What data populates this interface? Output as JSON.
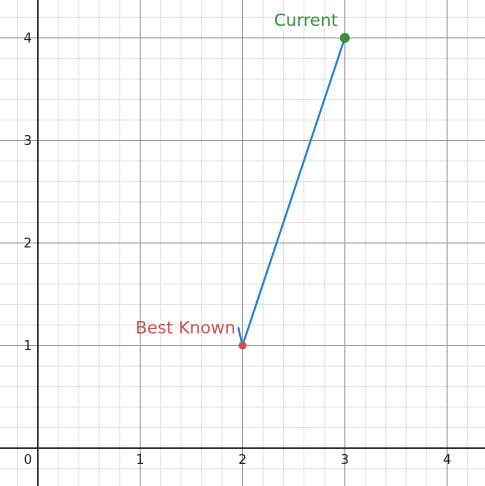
{
  "chart_data": {
    "type": "scatter",
    "xlim": [
      -0.37,
      4.37
    ],
    "ylim": [
      -0.37,
      4.37
    ],
    "grid": true,
    "minor_grid_step": 0.2,
    "x_ticks": [
      "0",
      "1",
      "2",
      "3",
      "4"
    ],
    "y_ticks": [
      "1",
      "2",
      "3",
      "4"
    ],
    "points": [
      {
        "label": "Current",
        "x": 3,
        "y": 4,
        "color": "#3a8f3a"
      },
      {
        "label": "Best Known",
        "x": 2,
        "y": 1,
        "color": "#d05050"
      }
    ],
    "arrow": {
      "from": [
        3,
        4
      ],
      "to": [
        2,
        1
      ],
      "color": "#1e7fe0"
    }
  }
}
